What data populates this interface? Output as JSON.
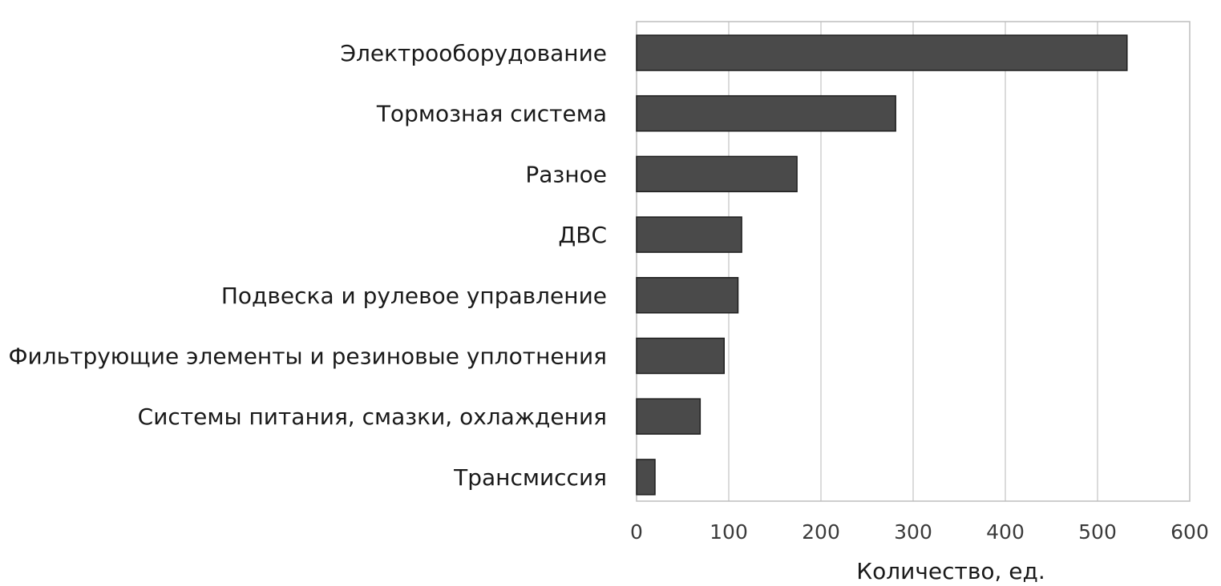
{
  "chart_data": {
    "type": "bar",
    "orientation": "horizontal",
    "categories": [
      "Электрооборудование",
      "Тормозная система",
      "Разное",
      "ДВС",
      "Подвеска и рулевое управление",
      "Фильтрующие элементы и резиновые уплотнения",
      "Системы питания, смазки, охлаждения",
      "Трансмиссия"
    ],
    "values": [
      532,
      281,
      174,
      114,
      110,
      95,
      69,
      20
    ],
    "title": "",
    "xlabel": "Количество, ед.",
    "ylabel": "",
    "xlim": [
      0,
      600
    ],
    "xticks": [
      "0",
      "100",
      "200",
      "300",
      "400",
      "500",
      "600"
    ],
    "grid": "vertical",
    "legend": "none",
    "bar_color": "#4a4a4a",
    "grid_color": "#cfcfcf"
  }
}
